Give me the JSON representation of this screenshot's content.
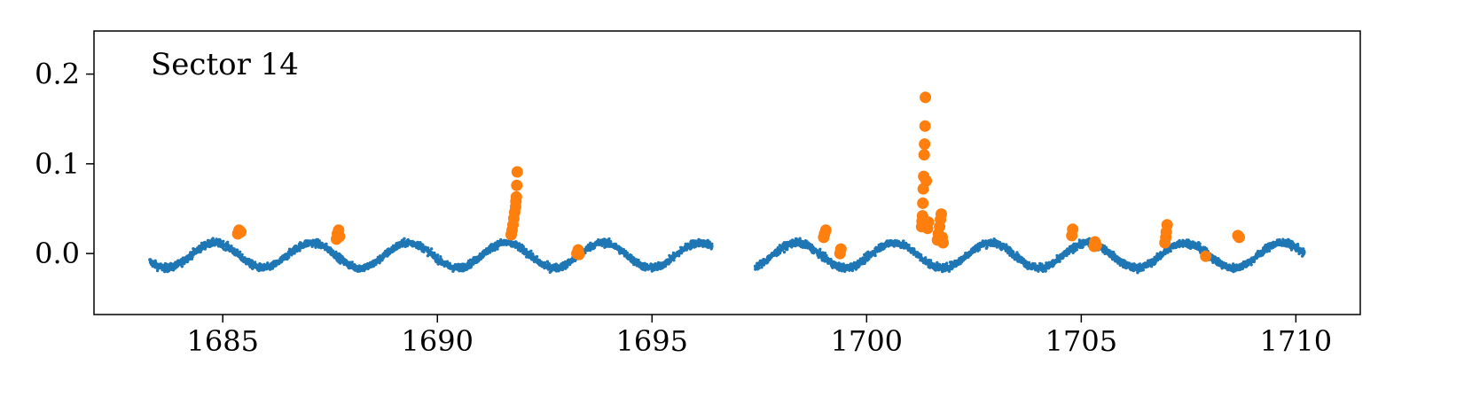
{
  "chart_data": {
    "type": "scatter",
    "title": "",
    "xlabel": "",
    "ylabel": "",
    "annotation": "Sector 14",
    "xlim": [
      1682.0,
      1711.5
    ],
    "ylim": [
      -0.068,
      0.248
    ],
    "xticks": [
      1685,
      1690,
      1695,
      1700,
      1705,
      1710
    ],
    "xtick_labels": [
      "1685",
      "1690",
      "1695",
      "1700",
      "1705",
      "1710"
    ],
    "yticks": [
      0.0,
      0.1,
      0.2
    ],
    "ytick_labels": [
      "0.0",
      "0.1",
      "0.2"
    ],
    "grid": false,
    "legend": "none",
    "series": [
      {
        "color": "#1f77b4",
        "marker": "small-dot",
        "x_start": 1683.3,
        "x_end": 1710.2,
        "gaps": [
          [
            1696.4,
            1697.4
          ]
        ],
        "period_days": 2.26,
        "amplitude": 0.014,
        "scatter": 0.004
      },
      {
        "color": "#ff7f0e",
        "marker": "large-dot",
        "points": [
          [
            1685.35,
            0.022
          ],
          [
            1685.38,
            0.026
          ],
          [
            1685.42,
            0.024
          ],
          [
            1687.65,
            0.016
          ],
          [
            1687.67,
            0.022
          ],
          [
            1687.7,
            0.026
          ],
          [
            1687.72,
            0.019
          ],
          [
            1691.72,
            0.021
          ],
          [
            1691.74,
            0.026
          ],
          [
            1691.76,
            0.032
          ],
          [
            1691.78,
            0.039
          ],
          [
            1691.8,
            0.046
          ],
          [
            1691.82,
            0.052
          ],
          [
            1691.83,
            0.058
          ],
          [
            1691.84,
            0.063
          ],
          [
            1691.85,
            0.076
          ],
          [
            1691.86,
            0.091
          ],
          [
            1693.25,
            0.0
          ],
          [
            1693.28,
            0.004
          ],
          [
            1693.3,
            -0.001
          ],
          [
            1699.0,
            0.018
          ],
          [
            1699.02,
            0.022
          ],
          [
            1699.05,
            0.026
          ],
          [
            1699.38,
            0.0
          ],
          [
            1699.4,
            0.005
          ],
          [
            1701.28,
            0.03
          ],
          [
            1701.29,
            0.036
          ],
          [
            1701.3,
            0.042
          ],
          [
            1701.31,
            0.056
          ],
          [
            1701.32,
            0.072
          ],
          [
            1701.33,
            0.086
          ],
          [
            1701.34,
            0.11
          ],
          [
            1701.35,
            0.122
          ],
          [
            1701.36,
            0.142
          ],
          [
            1701.37,
            0.174
          ],
          [
            1701.39,
            0.081
          ],
          [
            1701.42,
            0.028
          ],
          [
            1701.44,
            0.035
          ],
          [
            1701.65,
            0.015
          ],
          [
            1701.67,
            0.022
          ],
          [
            1701.7,
            0.03
          ],
          [
            1701.72,
            0.038
          ],
          [
            1701.74,
            0.044
          ],
          [
            1701.76,
            0.018
          ],
          [
            1701.78,
            0.012
          ],
          [
            1704.78,
            0.02
          ],
          [
            1704.8,
            0.027
          ],
          [
            1705.3,
            0.008
          ],
          [
            1705.32,
            0.013
          ],
          [
            1705.35,
            0.009
          ],
          [
            1706.95,
            0.012
          ],
          [
            1706.97,
            0.018
          ],
          [
            1706.98,
            0.024
          ],
          [
            1707.0,
            0.032
          ],
          [
            1707.9,
            -0.003
          ],
          [
            1708.65,
            0.02
          ],
          [
            1708.68,
            0.018
          ]
        ]
      }
    ]
  }
}
